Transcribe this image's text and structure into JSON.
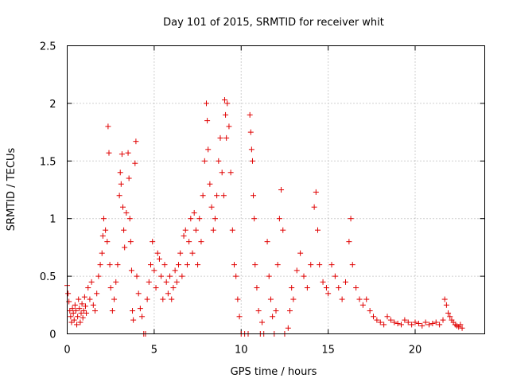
{
  "chart_data": {
    "type": "scatter",
    "title": "Day 101 of 2015, SRMTID for receiver whit",
    "xlabel": "GPS time / hours",
    "ylabel": "SRMTID / TECUs",
    "xlim": [
      0,
      24
    ],
    "ylim": [
      0,
      2.5
    ],
    "xticks": [
      0,
      5,
      10,
      15,
      20
    ],
    "xtick_labels": [
      "0",
      "5",
      "10",
      "15",
      "20"
    ],
    "yticks": [
      0,
      0.5,
      1,
      1.5,
      2,
      2.5
    ],
    "ytick_labels": [
      "0",
      "0.5",
      "1",
      "1.5",
      "2",
      "2.5"
    ],
    "grid": true,
    "marker": "+",
    "color": "#e00000",
    "series": [
      {
        "name": "SRMTID",
        "points": [
          [
            0.0,
            0.42
          ],
          [
            0.05,
            0.35
          ],
          [
            0.1,
            0.28
          ],
          [
            0.15,
            0.2
          ],
          [
            0.2,
            0.15
          ],
          [
            0.25,
            0.1
          ],
          [
            0.3,
            0.22
          ],
          [
            0.35,
            0.18
          ],
          [
            0.4,
            0.12
          ],
          [
            0.45,
            0.25
          ],
          [
            0.5,
            0.2
          ],
          [
            0.55,
            0.08
          ],
          [
            0.6,
            0.15
          ],
          [
            0.65,
            0.3
          ],
          [
            0.7,
            0.22
          ],
          [
            0.75,
            0.1
          ],
          [
            0.8,
            0.18
          ],
          [
            0.85,
            0.26
          ],
          [
            0.9,
            0.14
          ],
          [
            0.95,
            0.2
          ],
          [
            1.0,
            0.32
          ],
          [
            1.05,
            0.24
          ],
          [
            1.1,
            0.18
          ],
          [
            1.2,
            0.4
          ],
          [
            1.3,
            0.3
          ],
          [
            1.4,
            0.45
          ],
          [
            1.5,
            0.25
          ],
          [
            1.6,
            0.2
          ],
          [
            1.7,
            0.35
          ],
          [
            1.8,
            0.5
          ],
          [
            1.9,
            0.6
          ],
          [
            2.0,
            0.7
          ],
          [
            2.05,
            0.85
          ],
          [
            2.1,
            1.0
          ],
          [
            2.2,
            0.9
          ],
          [
            2.3,
            0.8
          ],
          [
            2.35,
            1.8
          ],
          [
            2.4,
            1.57
          ],
          [
            2.45,
            0.6
          ],
          [
            2.5,
            0.4
          ],
          [
            2.6,
            0.2
          ],
          [
            2.7,
            0.3
          ],
          [
            2.8,
            0.45
          ],
          [
            2.9,
            0.6
          ],
          [
            3.0,
            1.2
          ],
          [
            3.05,
            1.4
          ],
          [
            3.1,
            1.3
          ],
          [
            3.15,
            1.56
          ],
          [
            3.2,
            1.1
          ],
          [
            3.25,
            0.9
          ],
          [
            3.3,
            0.75
          ],
          [
            3.4,
            1.05
          ],
          [
            3.5,
            1.57
          ],
          [
            3.55,
            1.35
          ],
          [
            3.6,
            1.0
          ],
          [
            3.65,
            0.8
          ],
          [
            3.7,
            0.55
          ],
          [
            3.75,
            0.2
          ],
          [
            3.8,
            0.12
          ],
          [
            3.9,
            1.48
          ],
          [
            3.95,
            1.67
          ],
          [
            4.0,
            0.5
          ],
          [
            4.1,
            0.35
          ],
          [
            4.2,
            0.22
          ],
          [
            4.3,
            0.15
          ],
          [
            4.4,
            0.0
          ],
          [
            4.5,
            0.0
          ],
          [
            4.6,
            0.3
          ],
          [
            4.7,
            0.45
          ],
          [
            4.8,
            0.6
          ],
          [
            4.9,
            0.8
          ],
          [
            5.0,
            0.55
          ],
          [
            5.1,
            0.4
          ],
          [
            5.2,
            0.7
          ],
          [
            5.3,
            0.65
          ],
          [
            5.4,
            0.5
          ],
          [
            5.5,
            0.3
          ],
          [
            5.6,
            0.6
          ],
          [
            5.7,
            0.45
          ],
          [
            5.8,
            0.35
          ],
          [
            5.9,
            0.5
          ],
          [
            6.0,
            0.3
          ],
          [
            6.1,
            0.4
          ],
          [
            6.2,
            0.55
          ],
          [
            6.3,
            0.45
          ],
          [
            6.4,
            0.6
          ],
          [
            6.5,
            0.7
          ],
          [
            6.6,
            0.5
          ],
          [
            6.7,
            0.85
          ],
          [
            6.8,
            0.9
          ],
          [
            6.9,
            0.6
          ],
          [
            7.0,
            0.8
          ],
          [
            7.1,
            1.0
          ],
          [
            7.2,
            0.7
          ],
          [
            7.3,
            1.05
          ],
          [
            7.4,
            0.9
          ],
          [
            7.5,
            0.6
          ],
          [
            7.6,
            1.0
          ],
          [
            7.7,
            0.8
          ],
          [
            7.8,
            1.2
          ],
          [
            7.9,
            1.5
          ],
          [
            8.0,
            2.0
          ],
          [
            8.05,
            1.85
          ],
          [
            8.1,
            1.6
          ],
          [
            8.2,
            1.3
          ],
          [
            8.3,
            1.1
          ],
          [
            8.4,
            0.9
          ],
          [
            8.5,
            1.0
          ],
          [
            8.6,
            1.2
          ],
          [
            8.7,
            1.5
          ],
          [
            8.8,
            1.7
          ],
          [
            8.9,
            1.4
          ],
          [
            9.0,
            1.2
          ],
          [
            9.05,
            2.03
          ],
          [
            9.1,
            1.9
          ],
          [
            9.15,
            1.7
          ],
          [
            9.2,
            2.0
          ],
          [
            9.3,
            1.8
          ],
          [
            9.4,
            1.4
          ],
          [
            9.5,
            0.9
          ],
          [
            9.6,
            0.6
          ],
          [
            9.7,
            0.5
          ],
          [
            9.8,
            0.3
          ],
          [
            9.9,
            0.15
          ],
          [
            10.0,
            0.0
          ],
          [
            10.2,
            0.0
          ],
          [
            10.4,
            0.0
          ],
          [
            10.5,
            1.9
          ],
          [
            10.55,
            1.75
          ],
          [
            10.6,
            1.6
          ],
          [
            10.65,
            1.5
          ],
          [
            10.7,
            1.2
          ],
          [
            10.75,
            1.0
          ],
          [
            10.8,
            0.6
          ],
          [
            10.9,
            0.4
          ],
          [
            11.0,
            0.2
          ],
          [
            11.1,
            0.0
          ],
          [
            11.2,
            0.1
          ],
          [
            11.3,
            0.0
          ],
          [
            11.5,
            0.8
          ],
          [
            11.6,
            0.5
          ],
          [
            11.7,
            0.3
          ],
          [
            11.8,
            0.15
          ],
          [
            11.9,
            0.0
          ],
          [
            12.0,
            0.2
          ],
          [
            12.1,
            0.6
          ],
          [
            12.2,
            1.0
          ],
          [
            12.3,
            1.25
          ],
          [
            12.4,
            0.9
          ],
          [
            12.5,
            0.0
          ],
          [
            12.7,
            0.05
          ],
          [
            12.8,
            0.2
          ],
          [
            12.9,
            0.4
          ],
          [
            13.0,
            0.3
          ],
          [
            13.2,
            0.55
          ],
          [
            13.4,
            0.7
          ],
          [
            13.6,
            0.5
          ],
          [
            13.8,
            0.4
          ],
          [
            14.0,
            0.6
          ],
          [
            14.2,
            1.1
          ],
          [
            14.3,
            1.23
          ],
          [
            14.4,
            0.9
          ],
          [
            14.5,
            0.6
          ],
          [
            14.7,
            0.45
          ],
          [
            14.9,
            0.4
          ],
          [
            15.0,
            0.35
          ],
          [
            15.2,
            0.6
          ],
          [
            15.4,
            0.5
          ],
          [
            15.6,
            0.4
          ],
          [
            15.8,
            0.3
          ],
          [
            16.0,
            0.45
          ],
          [
            16.2,
            0.8
          ],
          [
            16.3,
            1.0
          ],
          [
            16.4,
            0.6
          ],
          [
            16.6,
            0.4
          ],
          [
            16.8,
            0.3
          ],
          [
            17.0,
            0.25
          ],
          [
            17.2,
            0.3
          ],
          [
            17.4,
            0.2
          ],
          [
            17.6,
            0.15
          ],
          [
            17.8,
            0.12
          ],
          [
            18.0,
            0.1
          ],
          [
            18.2,
            0.08
          ],
          [
            18.4,
            0.15
          ],
          [
            18.6,
            0.12
          ],
          [
            18.8,
            0.1
          ],
          [
            19.0,
            0.09
          ],
          [
            19.2,
            0.08
          ],
          [
            19.4,
            0.12
          ],
          [
            19.6,
            0.1
          ],
          [
            19.8,
            0.08
          ],
          [
            20.0,
            0.1
          ],
          [
            20.2,
            0.09
          ],
          [
            20.4,
            0.07
          ],
          [
            20.6,
            0.1
          ],
          [
            20.8,
            0.08
          ],
          [
            21.0,
            0.09
          ],
          [
            21.2,
            0.1
          ],
          [
            21.4,
            0.08
          ],
          [
            21.6,
            0.12
          ],
          [
            21.7,
            0.3
          ],
          [
            21.8,
            0.25
          ],
          [
            21.9,
            0.18
          ],
          [
            22.0,
            0.15
          ],
          [
            22.1,
            0.12
          ],
          [
            22.2,
            0.1
          ],
          [
            22.3,
            0.08
          ],
          [
            22.4,
            0.07
          ],
          [
            22.5,
            0.06
          ],
          [
            22.6,
            0.08
          ],
          [
            22.7,
            0.05
          ]
        ]
      }
    ]
  }
}
